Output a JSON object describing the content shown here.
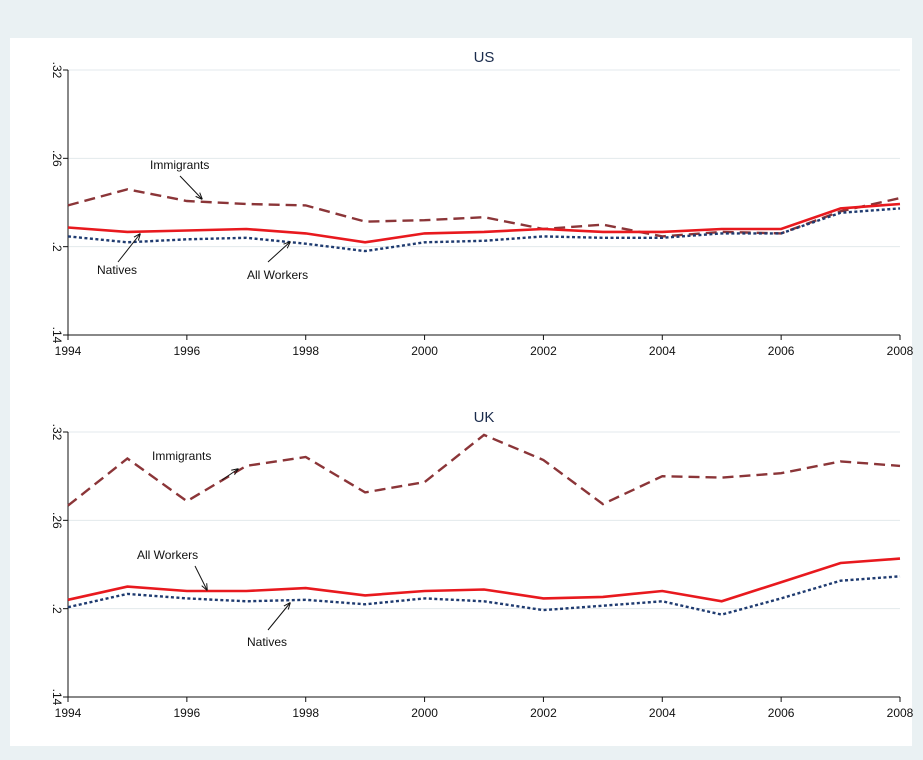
{
  "chart_data": [
    {
      "type": "line",
      "title": "US",
      "x": [
        1994,
        1995,
        1996,
        1997,
        1998,
        1999,
        2000,
        2001,
        2002,
        2003,
        2004,
        2005,
        2006,
        2007,
        2008
      ],
      "series": [
        {
          "name": "Immigrants",
          "color": "#8b3538",
          "style": "dashed",
          "values": [
            0.228,
            0.239,
            0.231,
            0.229,
            0.228,
            0.217,
            0.218,
            0.22,
            0.212,
            0.215,
            0.207,
            0.21,
            0.209,
            0.224,
            0.233
          ]
        },
        {
          "name": "Natives",
          "color": "#1f3b70",
          "style": "dotted",
          "values": [
            0.207,
            0.203,
            0.205,
            0.206,
            0.202,
            0.197,
            0.203,
            0.204,
            0.207,
            0.206,
            0.206,
            0.209,
            0.209,
            0.223,
            0.226
          ]
        },
        {
          "name": "All Workers",
          "color": "#e8191e",
          "style": "solid",
          "values": [
            0.213,
            0.21,
            0.211,
            0.212,
            0.209,
            0.203,
            0.209,
            0.21,
            0.212,
            0.21,
            0.21,
            0.212,
            0.212,
            0.226,
            0.229
          ]
        }
      ],
      "xlim": [
        1994,
        2008
      ],
      "xticks": [
        1994,
        1996,
        1998,
        2000,
        2002,
        2004,
        2006,
        2008
      ],
      "ylim": [
        0.14,
        0.32
      ],
      "yticks": [
        {
          "value": 0.14,
          "label": ".14"
        },
        {
          "value": 0.2,
          "label": ".2"
        },
        {
          "value": 0.26,
          "label": ".26"
        },
        {
          "value": 0.32,
          "label": ".32"
        }
      ],
      "grid": true
    },
    {
      "type": "line",
      "title": "UK",
      "x": [
        1994,
        1995,
        1996,
        1997,
        1998,
        1999,
        2000,
        2001,
        2002,
        2003,
        2004,
        2005,
        2006,
        2007,
        2008
      ],
      "series": [
        {
          "name": "Immigrants",
          "color": "#8b3538",
          "style": "dashed",
          "values": [
            0.27,
            0.302,
            0.273,
            0.297,
            0.303,
            0.279,
            0.286,
            0.318,
            0.301,
            0.271,
            0.29,
            0.289,
            0.292,
            0.3,
            0.297
          ]
        },
        {
          "name": "All Workers",
          "color": "#e8191e",
          "style": "solid",
          "values": [
            0.206,
            0.215,
            0.212,
            0.212,
            0.214,
            0.209,
            0.212,
            0.213,
            0.207,
            0.208,
            0.212,
            0.205,
            0.218,
            0.231,
            0.234
          ]
        },
        {
          "name": "Natives",
          "color": "#1f3b70",
          "style": "dotted",
          "values": [
            0.201,
            0.21,
            0.207,
            0.205,
            0.206,
            0.203,
            0.207,
            0.205,
            0.199,
            0.202,
            0.205,
            0.196,
            0.207,
            0.219,
            0.222
          ]
        }
      ],
      "xlim": [
        1994,
        2008
      ],
      "xticks": [
        1994,
        1996,
        1998,
        2000,
        2002,
        2004,
        2006,
        2008
      ],
      "ylim": [
        0.14,
        0.32
      ],
      "yticks": [
        {
          "value": 0.14,
          "label": ".14"
        },
        {
          "value": 0.2,
          "label": ".2"
        },
        {
          "value": 0.26,
          "label": ".26"
        },
        {
          "value": 0.32,
          "label": ".32"
        }
      ],
      "grid": true
    }
  ]
}
